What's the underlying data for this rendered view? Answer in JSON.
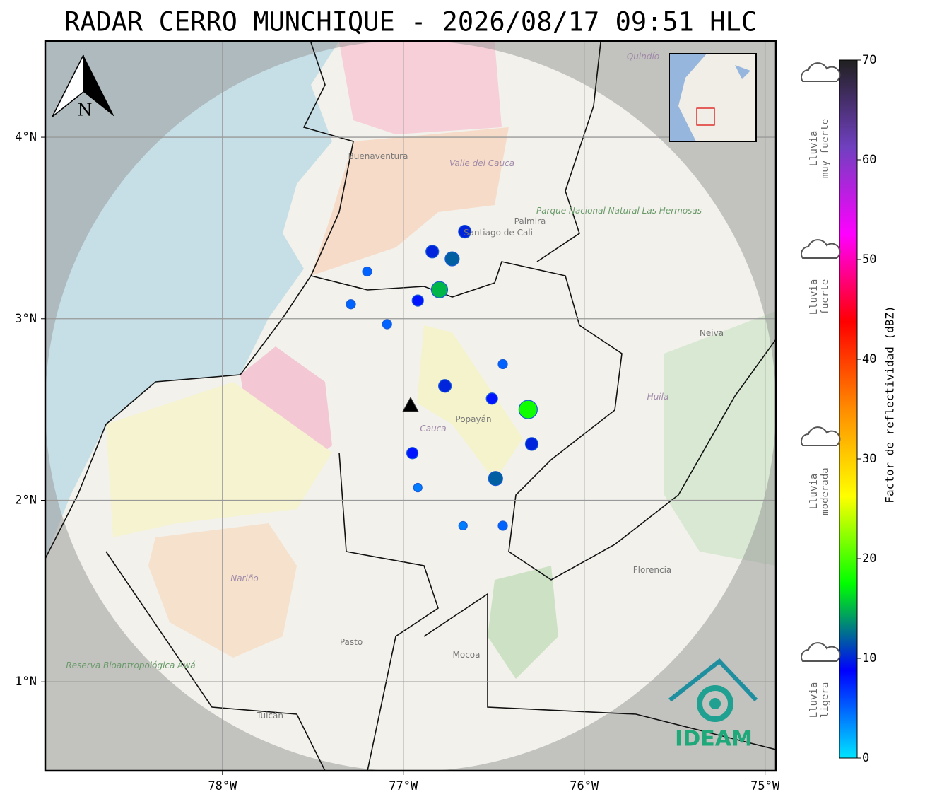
{
  "map": {
    "title": "RADAR CERRO MUNCHIQUE - 2026/08/17 09:51 HLC",
    "xlim": [
      -78.98,
      -74.94
    ],
    "ylim": [
      0.51,
      4.53
    ],
    "xticks": [
      {
        "value": -78,
        "label": "78°W"
      },
      {
        "value": -77,
        "label": "77°W"
      },
      {
        "value": -76,
        "label": "76°W"
      },
      {
        "value": -75,
        "label": "75°W"
      }
    ],
    "yticks": [
      {
        "value": 1,
        "label": "1°N"
      },
      {
        "value": 2,
        "label": "2°N"
      },
      {
        "value": 3,
        "label": "3°N"
      },
      {
        "value": 4,
        "label": "4°N"
      }
    ],
    "north": "N",
    "radar": {
      "lon": -76.96,
      "lat": 2.52
    },
    "echoes": [
      {
        "lon": -76.8,
        "lat": 3.16,
        "dbz": 15
      },
      {
        "lon": -76.73,
        "lat": 3.33,
        "dbz": 12
      },
      {
        "lon": -76.66,
        "lat": 3.48,
        "dbz": 10
      },
      {
        "lon": -76.84,
        "lat": 3.37,
        "dbz": 10
      },
      {
        "lon": -76.92,
        "lat": 3.1,
        "dbz": 8
      },
      {
        "lon": -77.2,
        "lat": 3.26,
        "dbz": 5
      },
      {
        "lon": -77.09,
        "lat": 2.97,
        "dbz": 5
      },
      {
        "lon": -76.77,
        "lat": 2.63,
        "dbz": 10
      },
      {
        "lon": -76.51,
        "lat": 2.56,
        "dbz": 8
      },
      {
        "lon": -76.31,
        "lat": 2.5,
        "dbz": 18
      },
      {
        "lon": -76.95,
        "lat": 2.26,
        "dbz": 8
      },
      {
        "lon": -76.49,
        "lat": 2.12,
        "dbz": 12
      },
      {
        "lon": -76.92,
        "lat": 2.07,
        "dbz": 4
      },
      {
        "lon": -76.45,
        "lat": 1.86,
        "dbz": 5
      },
      {
        "lon": -76.67,
        "lat": 1.86,
        "dbz": 4
      },
      {
        "lon": -76.29,
        "lat": 2.31,
        "dbz": 10
      },
      {
        "lon": -76.45,
        "lat": 2.75,
        "dbz": 5
      },
      {
        "lon": -77.29,
        "lat": 3.08,
        "dbz": 5
      }
    ],
    "places": [
      "Buenaventura",
      "Valle del Cauca",
      "Palmira",
      "Santiago de Cali",
      "Parque Nacional Natural Las Hermosas",
      "Neiva",
      "Huila",
      "Popayán",
      "Cauca",
      "Nariño",
      "Pasto",
      "Mocoa",
      "Florencia",
      "Tulcán",
      "Reserva Bioantropológica Awá",
      "Quindío"
    ],
    "logo": "IDEAM",
    "colorbar": {
      "label": "Factor de reflectividad (dBZ)",
      "range": [
        0,
        70
      ],
      "ticks": [
        0,
        10,
        20,
        30,
        40,
        50,
        60,
        70
      ],
      "colors": [
        "#00e5ff",
        "#0000ff",
        "#00ff00",
        "#ffff00",
        "#ff8c00",
        "#ff0000",
        "#ff00ff",
        "#7040c0",
        "#202020"
      ]
    },
    "legend": [
      {
        "lines": [
          "Lluvia",
          "muy fuerte"
        ]
      },
      {
        "lines": [
          "Lluvia",
          "fuerte"
        ]
      },
      {
        "lines": [
          "Lluvia",
          "moderada"
        ]
      },
      {
        "lines": [
          "Lluvia",
          "ligera"
        ]
      }
    ]
  }
}
